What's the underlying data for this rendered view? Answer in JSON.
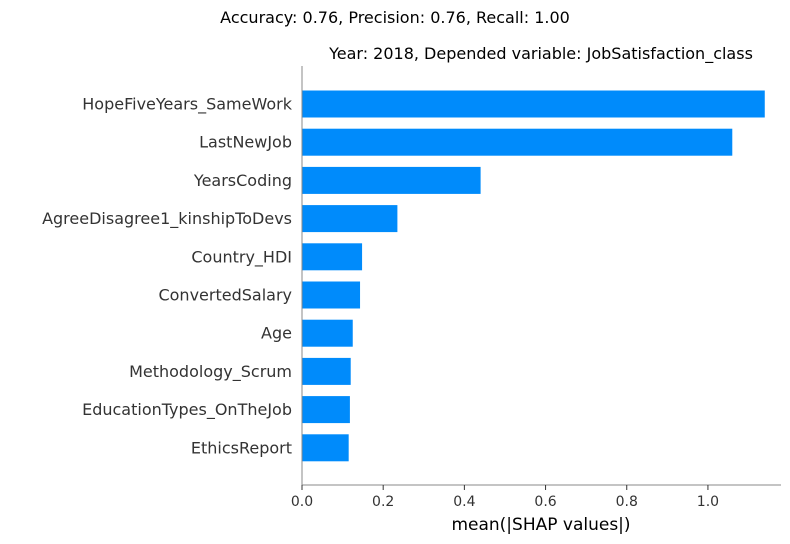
{
  "chart_data": {
    "type": "bar",
    "orientation": "horizontal",
    "suptitle": "Accuracy: 0.76, Precision: 0.76, Recall: 1.00",
    "title": "Year: 2018, Depended variable: JobSatisfaction_class",
    "xlabel": "mean(|SHAP values|)",
    "ylabel": "",
    "categories": [
      "HopeFiveYears_SameWork",
      "LastNewJob",
      "YearsCoding",
      "AgreeDisagree1_kinshipToDevs",
      "Country_HDI",
      "ConvertedSalary",
      "Age",
      "Methodology_Scrum",
      "EducationTypes_OnTheJob",
      "EthicsReport"
    ],
    "values": [
      1.14,
      1.06,
      0.44,
      0.235,
      0.148,
      0.143,
      0.125,
      0.12,
      0.118,
      0.115
    ],
    "xlim": [
      0,
      1.18
    ],
    "xticks": [
      0.0,
      0.2,
      0.4,
      0.6,
      0.8,
      1.0
    ],
    "xtick_labels": [
      "0.0",
      "0.2",
      "0.4",
      "0.6",
      "0.8",
      "1.0"
    ],
    "bar_color": "#008bfb",
    "grid": false,
    "legend": "none"
  }
}
